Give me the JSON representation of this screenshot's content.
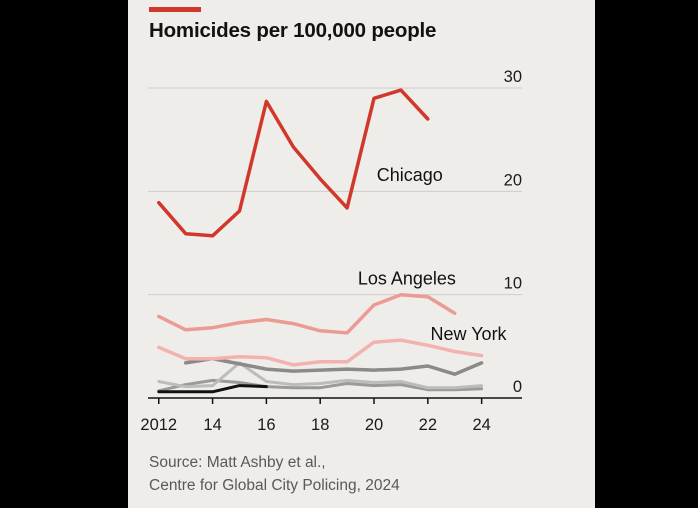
{
  "title": "Homicides per 100,000 people",
  "source": [
    "Source: Matt Ashby et al.,",
    "Centre for Global City Policing, 2024"
  ],
  "chart_data": {
    "type": "line",
    "title": "Homicides per 100,000 people",
    "xlabel": "",
    "ylabel": "",
    "x": [
      2012,
      2013,
      2014,
      2015,
      2016,
      2017,
      2018,
      2019,
      2020,
      2021,
      2022,
      2023,
      2024
    ],
    "xticks": [
      2012,
      2014,
      2016,
      2018,
      2020,
      2022,
      2024
    ],
    "xtick_labels": [
      "2012",
      "14",
      "16",
      "18",
      "20",
      "22",
      "24"
    ],
    "yticks": [
      0,
      10,
      20,
      30
    ],
    "ylim": [
      0,
      30
    ],
    "xlim": [
      2011.6,
      2025.5
    ],
    "grid": true,
    "series": [
      {
        "name": "",
        "color": "#9a9a9a",
        "width": 3,
        "values": [
          0.7,
          1.3,
          1.7,
          1.5,
          1.1,
          1.0,
          1.0,
          1.4,
          1.2,
          1.3,
          0.8,
          0.8,
          0.9
        ]
      },
      {
        "name": "",
        "color": "#bcbcbc",
        "width": 3,
        "values": [
          1.6,
          1.1,
          1.2,
          3.4,
          1.6,
          1.3,
          1.4,
          1.7,
          1.5,
          1.6,
          1.0,
          1.0,
          1.2
        ]
      },
      {
        "name": "",
        "color": "#111111",
        "width": 3,
        "values": [
          0.6,
          0.6,
          0.6,
          1.2,
          1.1,
          null,
          null,
          null,
          null,
          null,
          null,
          null,
          null
        ]
      },
      {
        "name": "",
        "color": "#8a8a8a",
        "width": 3.5,
        "values": [
          null,
          3.4,
          3.8,
          3.3,
          2.8,
          2.6,
          2.7,
          2.8,
          2.7,
          2.8,
          3.1,
          2.3,
          3.4
        ]
      },
      {
        "name": "New York",
        "color": "#f2b3ae",
        "width": 3.5,
        "values": [
          4.9,
          3.8,
          3.8,
          4.0,
          3.9,
          3.2,
          3.5,
          3.5,
          5.4,
          5.6,
          5.1,
          4.5,
          4.1
        ]
      },
      {
        "name": "Los Angeles",
        "color": "#eb9b94",
        "width": 3.5,
        "values": [
          7.9,
          6.6,
          6.8,
          7.3,
          7.6,
          7.2,
          6.5,
          6.3,
          9.0,
          10.0,
          9.8,
          8.2,
          null
        ]
      },
      {
        "name": "Chicago",
        "color": "#d1372b",
        "width": 3.5,
        "values": [
          18.9,
          15.9,
          15.7,
          18.1,
          28.7,
          24.3,
          21.2,
          18.4,
          29.0,
          29.8,
          27.0,
          null,
          null
        ]
      }
    ],
    "labels": {
      "Chicago": [
        2020.1,
        21.0
      ],
      "Los Angeles": [
        2019.4,
        11.0
      ],
      "New York": [
        2022.1,
        5.6
      ]
    }
  }
}
